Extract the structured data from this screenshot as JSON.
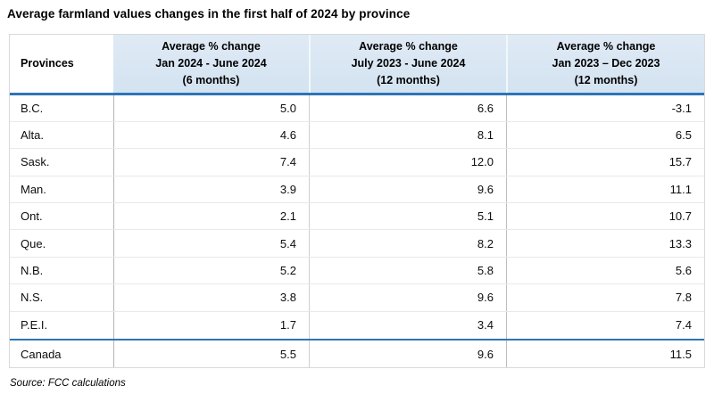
{
  "title": "Average farmland values changes in the first half of 2024 by province",
  "source": "Source: FCC calculations",
  "colors": {
    "header_bg": "#d9e7f3",
    "accent_line_blue": "#2e74b5",
    "row_divider": "#e9e9e9",
    "column_divider": "#bdbdbd",
    "table_border": "#d9d9d9",
    "text": "#000000"
  },
  "header": {
    "provinces": "Provinces",
    "col1": {
      "line1": "Average % change",
      "line2": "Jan 2024 - June 2024",
      "line3": "(6 months)"
    },
    "col2": {
      "line1": "Average % change",
      "line2": "July 2023 - June 2024",
      "line3": "(12 months)"
    },
    "col3": {
      "line1": "Average % change",
      "line2": "Jan 2023 – Dec 2023",
      "line3": "(12 months)"
    }
  },
  "rows": [
    {
      "province": "B.C.",
      "v1": "5.0",
      "v2": "6.6",
      "v3": "-3.1"
    },
    {
      "province": "Alta.",
      "v1": "4.6",
      "v2": "8.1",
      "v3": "6.5"
    },
    {
      "province": "Sask.",
      "v1": "7.4",
      "v2": "12.0",
      "v3": "15.7"
    },
    {
      "province": "Man.",
      "v1": "3.9",
      "v2": "9.6",
      "v3": "11.1"
    },
    {
      "province": "Ont.",
      "v1": "2.1",
      "v2": "5.1",
      "v3": "10.7"
    },
    {
      "province": "Que.",
      "v1": "5.4",
      "v2": "8.2",
      "v3": "13.3"
    },
    {
      "province": "N.B.",
      "v1": "5.2",
      "v2": "5.8",
      "v3": "5.6"
    },
    {
      "province": "N.S.",
      "v1": "3.8",
      "v2": "9.6",
      "v3": "7.8"
    },
    {
      "province": "P.E.I.",
      "v1": "1.7",
      "v2": "3.4",
      "v3": "7.4"
    }
  ],
  "total_row": {
    "province": "Canada",
    "v1": "5.5",
    "v2": "9.6",
    "v3": "11.5"
  },
  "chart_data": {
    "type": "table",
    "title": "Average farmland values changes in the first half of 2024 by province",
    "columns": [
      "Provinces",
      "Average % change Jan 2024 - June 2024 (6 months)",
      "Average % change July 2023 - June 2024 (12 months)",
      "Average % change Jan 2023 – Dec 2023 (12 months)"
    ],
    "rows": [
      [
        "B.C.",
        5.0,
        6.6,
        -3.1
      ],
      [
        "Alta.",
        4.6,
        8.1,
        6.5
      ],
      [
        "Sask.",
        7.4,
        12.0,
        15.7
      ],
      [
        "Man.",
        3.9,
        9.6,
        11.1
      ],
      [
        "Ont.",
        2.1,
        5.1,
        10.7
      ],
      [
        "Que.",
        5.4,
        8.2,
        13.3
      ],
      [
        "N.B.",
        5.2,
        5.8,
        5.6
      ],
      [
        "N.S.",
        3.8,
        9.6,
        7.8
      ],
      [
        "P.E.I.",
        1.7,
        3.4,
        7.4
      ]
    ],
    "total": [
      "Canada",
      5.5,
      9.6,
      11.5
    ],
    "source": "FCC calculations",
    "units": "percent"
  }
}
